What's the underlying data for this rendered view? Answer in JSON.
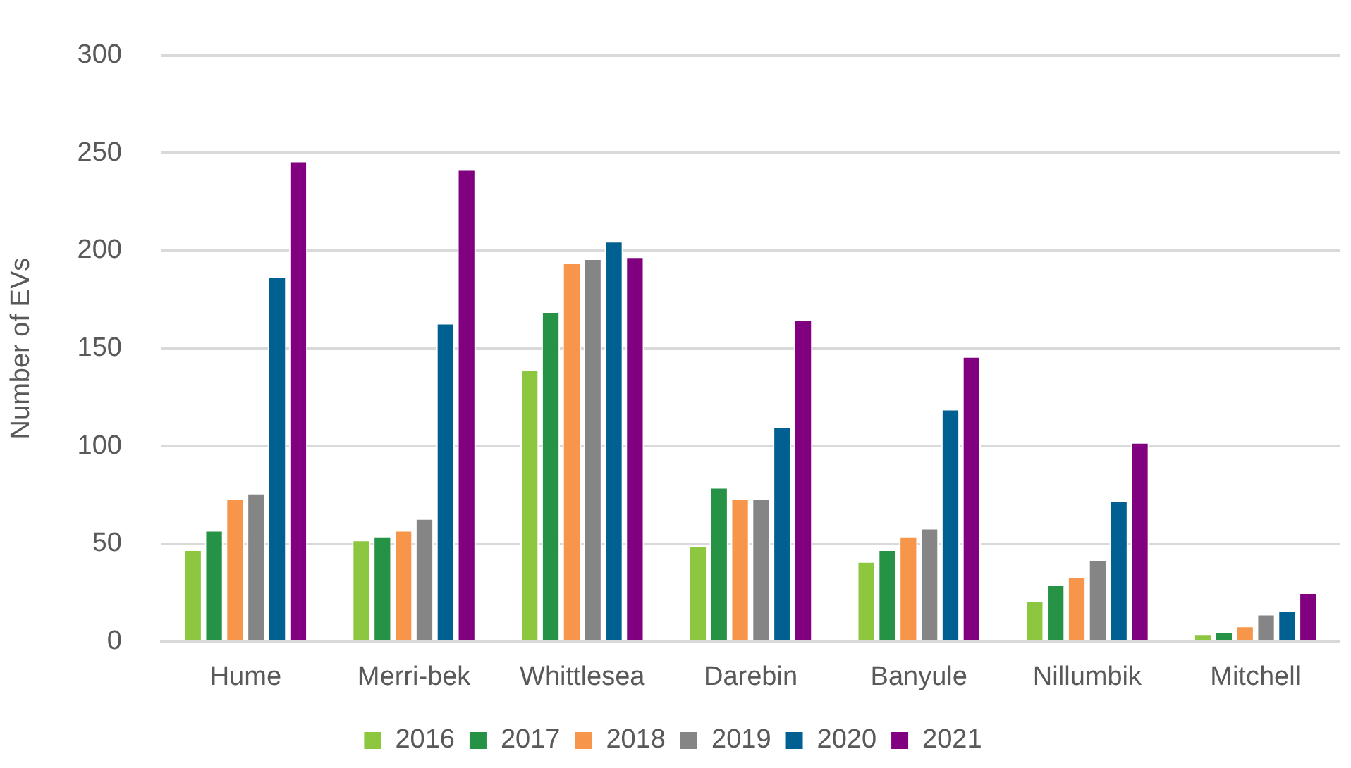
{
  "chart_data": {
    "type": "bar",
    "ylabel": "Number of EVs",
    "categories": [
      "Hume",
      "Merri-bek",
      "Whittlesea",
      "Darebin",
      "Banyule",
      "Nillumbik",
      "Mitchell"
    ],
    "series": [
      {
        "name": "2016",
        "color": "#8dc63f",
        "values": [
          47,
          52,
          139,
          49,
          41,
          21,
          4
        ]
      },
      {
        "name": "2017",
        "color": "#259245",
        "values": [
          57,
          54,
          169,
          79,
          47,
          29,
          5
        ]
      },
      {
        "name": "2018",
        "color": "#f7964a",
        "values": [
          73,
          57,
          194,
          73,
          54,
          33,
          8
        ]
      },
      {
        "name": "2019",
        "color": "#858585",
        "values": [
          76,
          63,
          196,
          73,
          58,
          42,
          14
        ]
      },
      {
        "name": "2020",
        "color": "#006092",
        "values": [
          187,
          163,
          205,
          110,
          119,
          72,
          16
        ]
      },
      {
        "name": "2021",
        "color": "#800080",
        "values": [
          246,
          242,
          197,
          165,
          146,
          102,
          25
        ]
      }
    ],
    "ylim": [
      0,
      300
    ],
    "yticks": [
      0,
      50,
      100,
      150,
      200,
      250,
      300
    ],
    "grid": "y",
    "legend": "bottom"
  }
}
